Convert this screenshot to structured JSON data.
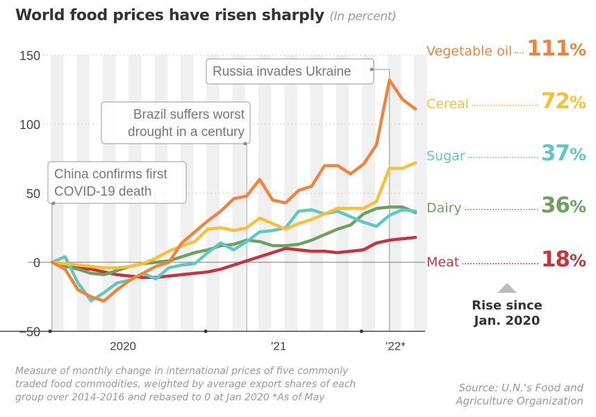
{
  "title": "World food prices have risen sharply",
  "subtitle": "(In percent)",
  "chart_data": {
    "type": "line",
    "title": "World food prices have risen sharply",
    "subtitle": "(In percent)",
    "x": [
      "2020-01",
      "2020-02",
      "2020-03",
      "2020-04",
      "2020-05",
      "2020-06",
      "2020-07",
      "2020-08",
      "2020-09",
      "2020-10",
      "2020-11",
      "2020-12",
      "2021-01",
      "2021-02",
      "2021-03",
      "2021-04",
      "2021-05",
      "2021-06",
      "2021-07",
      "2021-08",
      "2021-09",
      "2021-10",
      "2021-11",
      "2021-12",
      "2022-01",
      "2022-02",
      "2022-03",
      "2022-04",
      "2022-05"
    ],
    "x_tick_labels": [
      "2020",
      "'21",
      "'22*"
    ],
    "y_ticks": [
      150,
      100,
      50,
      0,
      -50
    ],
    "y_tick_labels": [
      "150",
      "100",
      "50",
      "0",
      "−50"
    ],
    "ylim": [
      -50,
      150
    ],
    "grid": true,
    "series": [
      {
        "name": "Vegetable oil",
        "color": "#f0843a",
        "values": [
          0,
          -5,
          -20,
          -25,
          -28,
          -20,
          -13,
          -8,
          -3,
          0,
          14,
          22,
          30,
          37,
          46,
          48,
          60,
          45,
          43,
          52,
          55,
          70,
          70,
          64,
          71,
          85,
          132,
          118,
          111
        ]
      },
      {
        "name": "Cereal",
        "color": "#fbbf35",
        "values": [
          0,
          -1,
          -2,
          -3,
          -4,
          -4,
          -3,
          -1,
          3,
          8,
          12,
          15,
          24,
          25,
          23,
          25,
          32,
          28,
          24,
          28,
          31,
          35,
          39,
          39,
          39,
          44,
          68,
          68,
          72
        ]
      },
      {
        "name": "Sugar",
        "color": "#5cc9c6",
        "values": [
          0,
          4,
          -15,
          -28,
          -22,
          -15,
          -13,
          -8,
          -12,
          -4,
          -2,
          -1,
          7,
          14,
          9,
          15,
          22,
          23,
          25,
          37,
          38,
          35,
          37,
          33,
          29,
          26,
          34,
          38,
          37
        ]
      },
      {
        "name": "Dairy",
        "color": "#6aa35e",
        "values": [
          0,
          -3,
          -5,
          -8,
          -9,
          -6,
          -3,
          -1,
          0,
          1,
          4,
          7,
          9,
          12,
          13,
          16,
          15,
          12,
          12,
          13,
          16,
          20,
          24,
          27,
          35,
          39,
          40,
          40,
          36
        ]
      },
      {
        "name": "Meat",
        "color": "#c8343a",
        "values": [
          0,
          -2,
          -4,
          -5,
          -7,
          -9,
          -10,
          -11,
          -11,
          -10,
          -9,
          -8,
          -7,
          -5,
          -2,
          1,
          4,
          7,
          10,
          9,
          8,
          8,
          7,
          8,
          9,
          14,
          16,
          17,
          18
        ]
      }
    ],
    "annotations": [
      {
        "lines": [
          "China confirms first",
          "COVID-19 death"
        ],
        "x": "2020-01"
      },
      {
        "lines": [
          "Brazil suffers worst",
          "drought in a century"
        ],
        "x": "2021-04"
      },
      {
        "lines": [
          "Russia invades Ukraine"
        ],
        "x": "2022-03"
      }
    ]
  },
  "legend": [
    {
      "label": "Vegetable oil",
      "value": "111",
      "unit": "%",
      "color": "#f0843a"
    },
    {
      "label": "Cereal",
      "value": "72",
      "unit": "%",
      "color": "#fbbf35"
    },
    {
      "label": "Sugar",
      "value": "37",
      "unit": "%",
      "color": "#5cc9c6"
    },
    {
      "label": "Dairy",
      "value": "36",
      "unit": "%",
      "color": "#6aa35e"
    },
    {
      "label": "Meat",
      "value": "18",
      "unit": "%",
      "color": "#c8343a"
    }
  ],
  "rise_label": [
    "Rise since",
    "Jan. 2020"
  ],
  "footnote": [
    "Measure of monthly change in international prices of five commonly",
    "traded food commodities, weighted by average export shares of each",
    "group over 2014-2016 and rebased to 0 at Jan 2020  *As of May"
  ],
  "source": [
    "Source: U.N.'s Food and",
    "Agriculture Organization"
  ]
}
